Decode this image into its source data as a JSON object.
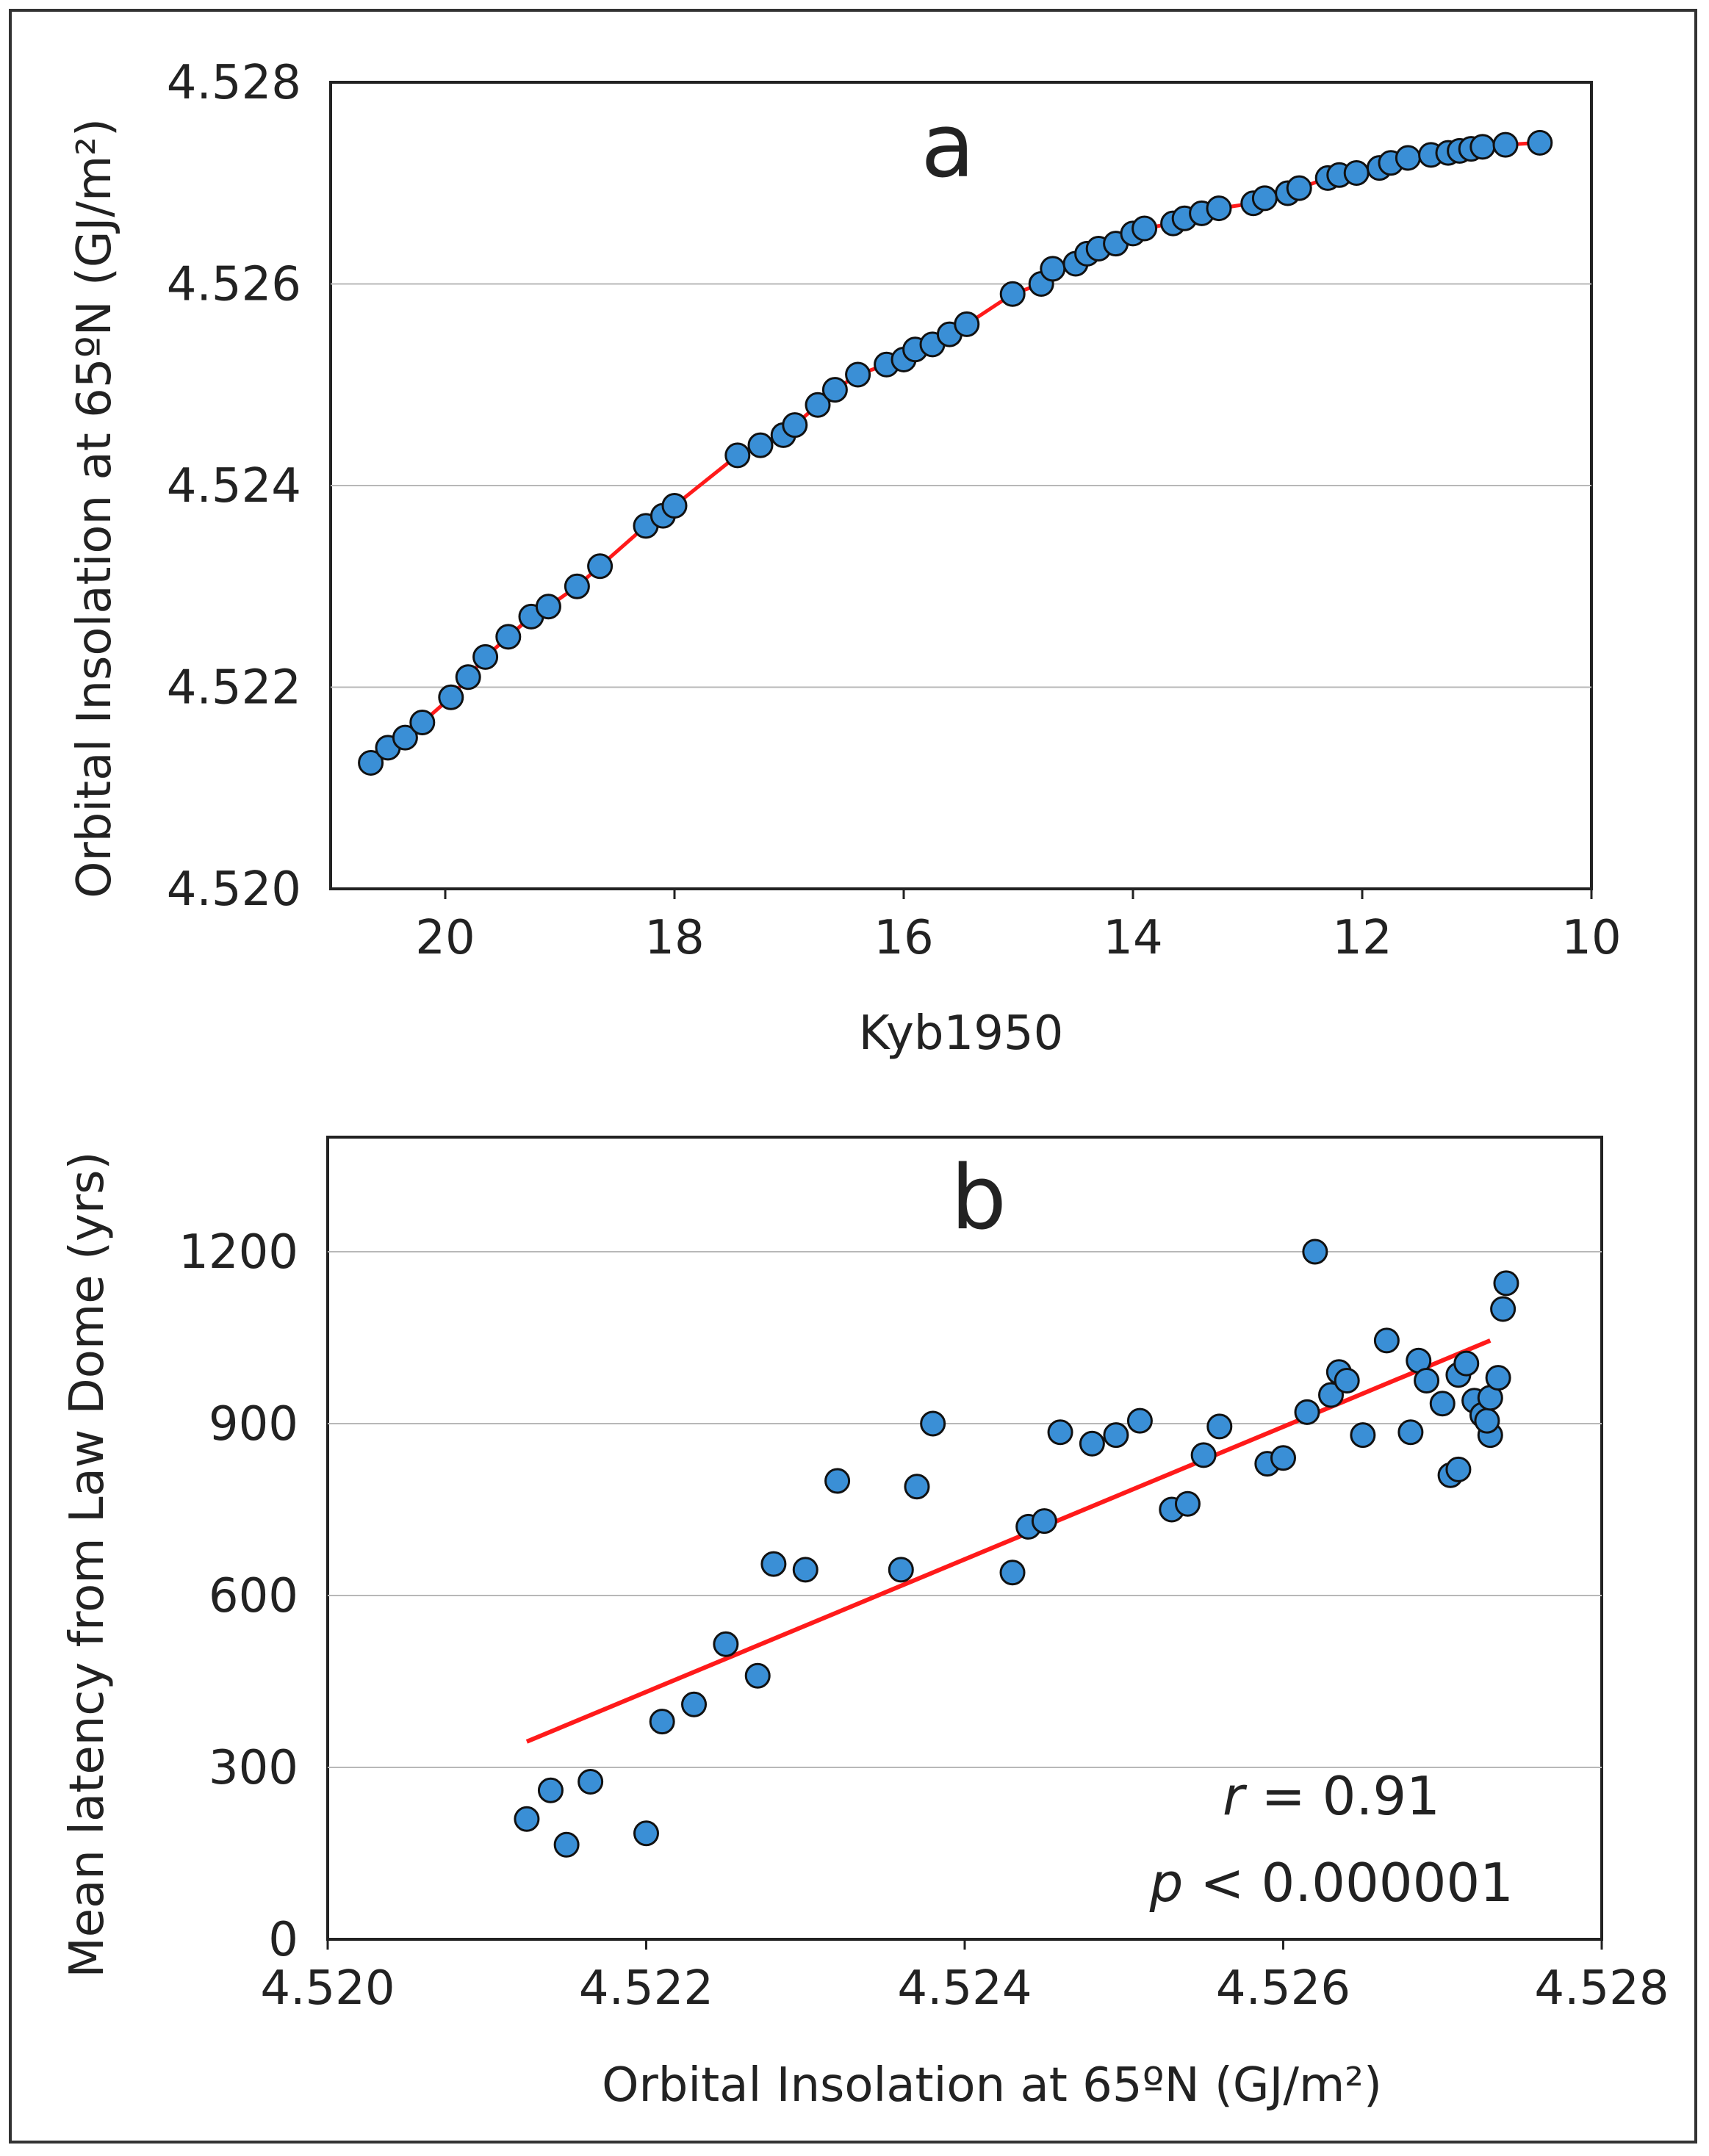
{
  "chart_data": [
    {
      "type": "scatter",
      "panel_label": "a",
      "xlabel": "Kyb1950",
      "ylabel": "Orbital Insolation at  65ºN (GJ/m²)",
      "xlim": [
        21,
        10
      ],
      "ylim": [
        4.52,
        4.528
      ],
      "x_ticks": [
        "20",
        "18",
        "16",
        "14",
        "12",
        "10"
      ],
      "y_ticks": [
        "4.520",
        "4.522",
        "4.524",
        "4.526",
        "4.528"
      ],
      "grid": "horizontal",
      "marker_color": "#3a8fd6",
      "fit_line_color": "#ff1a1a",
      "x": [
        20.65,
        20.5,
        20.35,
        20.2,
        19.95,
        19.8,
        19.65,
        19.45,
        19.25,
        19.1,
        18.85,
        18.65,
        18.25,
        18.1,
        18.0,
        17.45,
        17.25,
        17.05,
        16.95,
        16.75,
        16.6,
        16.4,
        16.15,
        16.0,
        15.9,
        15.75,
        15.6,
        15.45,
        15.05,
        14.8,
        14.7,
        14.5,
        14.4,
        14.3,
        14.15,
        14.0,
        13.9,
        13.65,
        13.55,
        13.4,
        13.25,
        12.95,
        12.85,
        12.65,
        12.55,
        12.3,
        12.2,
        12.05,
        11.85,
        11.75,
        11.6,
        11.4,
        11.25,
        11.15,
        11.05,
        10.95,
        10.75,
        10.45
      ],
      "y": [
        4.52125,
        4.5214,
        4.5215,
        4.52165,
        4.5219,
        4.5221,
        4.5223,
        4.5225,
        4.5227,
        4.5228,
        4.523,
        4.5232,
        4.5236,
        4.5237,
        4.5238,
        4.5243,
        4.5244,
        4.5245,
        4.5246,
        4.5248,
        4.52495,
        4.5251,
        4.5252,
        4.52525,
        4.52535,
        4.5254,
        4.5255,
        4.5256,
        4.5259,
        4.526,
        4.52615,
        4.5262,
        4.5263,
        4.52635,
        4.5264,
        4.5265,
        4.52655,
        4.5266,
        4.52665,
        4.5267,
        4.52675,
        4.5268,
        4.52685,
        4.5269,
        4.52695,
        4.52705,
        4.52708,
        4.5271,
        4.52715,
        4.5272,
        4.52725,
        4.52728,
        4.5273,
        4.52732,
        4.52734,
        4.52736,
        4.52738,
        4.5274
      ]
    },
    {
      "type": "scatter",
      "panel_label": "b",
      "xlabel": "Orbital Insolation at  65ºN (GJ/m²)",
      "ylabel": "Mean latency from Law Dome (yrs)",
      "xlim": [
        4.52,
        4.528
      ],
      "ylim": [
        0,
        1400
      ],
      "x_ticks": [
        "4.520",
        "4.522",
        "4.524",
        "4.526",
        "4.528"
      ],
      "y_ticks": [
        "0",
        "300",
        "600",
        "900",
        "1200"
      ],
      "grid": "horizontal",
      "marker_color": "#3a8fd6",
      "fit_line_color": "#ff1a1a",
      "fit_line": {
        "x": [
          4.52125,
          4.5273
        ],
        "y": [
          345,
          1045
        ]
      },
      "annotations": {
        "r_symbol": "r",
        "r_text": " = 0.91",
        "p_symbol": "p",
        "p_text": " < 0.000001"
      },
      "x": [
        4.52125,
        4.5214,
        4.5215,
        4.52165,
        4.522,
        4.5221,
        4.5223,
        4.5225,
        4.5227,
        4.5228,
        4.523,
        4.5232,
        4.5236,
        4.5237,
        4.5238,
        4.5243,
        4.5244,
        4.5245,
        4.5246,
        4.5248,
        4.52495,
        4.5251,
        4.5253,
        4.5254,
        4.5255,
        4.5256,
        4.5259,
        4.526,
        4.52615,
        4.5263,
        4.52635,
        4.5264,
        4.52665,
        4.5268,
        4.52685,
        4.5269,
        4.527,
        4.52705,
        4.5271,
        4.52715,
        4.5272,
        4.52725,
        4.5273,
        4.52728,
        4.5273,
        4.52735,
        4.52738,
        4.5274,
        4.5265,
        4.5262,
        4.5271
      ],
      "y": [
        210,
        260,
        165,
        275,
        185,
        380,
        410,
        515,
        460,
        655,
        645,
        800,
        645,
        790,
        900,
        640,
        720,
        730,
        885,
        865,
        880,
        905,
        750,
        760,
        845,
        895,
        830,
        840,
        920,
        950,
        990,
        975,
        1045,
        885,
        1010,
        975,
        935,
        810,
        985,
        1005,
        940,
        915,
        880,
        905,
        945,
        980,
        1100,
        1145,
        880,
        1200,
        820
      ]
    }
  ]
}
